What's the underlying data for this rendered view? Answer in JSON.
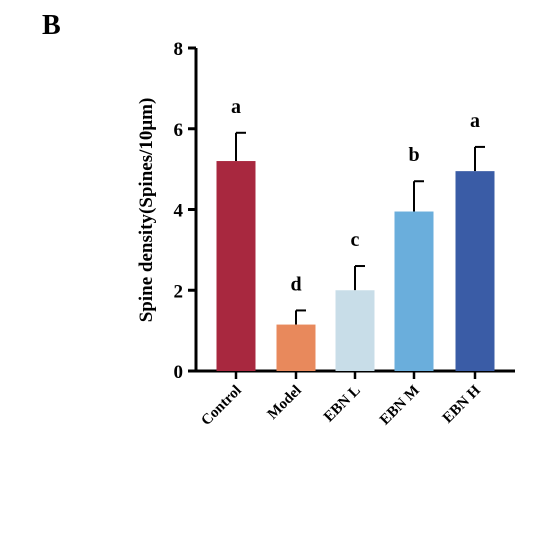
{
  "panel_label": "B",
  "chart_data": {
    "type": "bar",
    "ylabel": "Spine density(Spines/10μm)",
    "categories": [
      "Control",
      "Model",
      "EBN L",
      "EBN M",
      "EBN H"
    ],
    "values": [
      5.2,
      1.15,
      2.0,
      3.95,
      4.95
    ],
    "errors": [
      0.7,
      0.35,
      0.6,
      0.75,
      0.6
    ],
    "colors": [
      "#a8283f",
      "#e8895c",
      "#c8dde8",
      "#6aaedc",
      "#3a5ca6"
    ],
    "significance": [
      "a",
      "d",
      "c",
      "b",
      "a"
    ],
    "ylim": [
      0,
      8
    ],
    "yticks": [
      0,
      2,
      4,
      6,
      8
    ]
  }
}
